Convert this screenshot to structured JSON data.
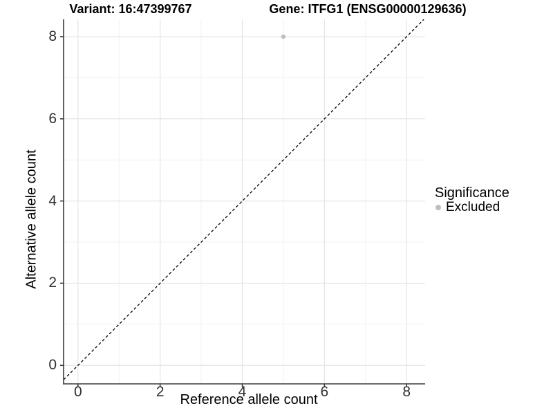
{
  "chart_data": {
    "type": "scatter",
    "titles": [
      "Variant: 16:47399767",
      "Gene: ITFG1 (ENSG00000129636)"
    ],
    "xlabel": "Reference allele count",
    "ylabel": "Alternative allele count",
    "xlim": [
      -0.35,
      8.45
    ],
    "ylim": [
      -0.45,
      8.42
    ],
    "x_major_ticks": [
      0,
      2,
      4,
      6,
      8
    ],
    "x_minor_ticks": [
      1,
      3,
      5,
      7
    ],
    "y_major_ticks": [
      0,
      2,
      4,
      6,
      8
    ],
    "y_minor_ticks": [
      1,
      3,
      5,
      7
    ],
    "grid": "major and minor gridlines, white panel background",
    "points": [
      {
        "x": 5,
        "y": 8,
        "series": "Excluded"
      }
    ],
    "identity_line": {
      "slope": 1,
      "intercept": 0,
      "style": "dashed"
    },
    "legend": {
      "title": "Significance",
      "position": "right",
      "entries": [
        {
          "label": "Excluded",
          "color": "#bebebe",
          "marker": "circle"
        }
      ]
    },
    "colors": {
      "point": "#bebebe",
      "axis_line": "#3a3a3a",
      "grid_major": "#e4e4e4",
      "grid_minor": "#f1f1f1",
      "identity_line": "#000000"
    }
  }
}
